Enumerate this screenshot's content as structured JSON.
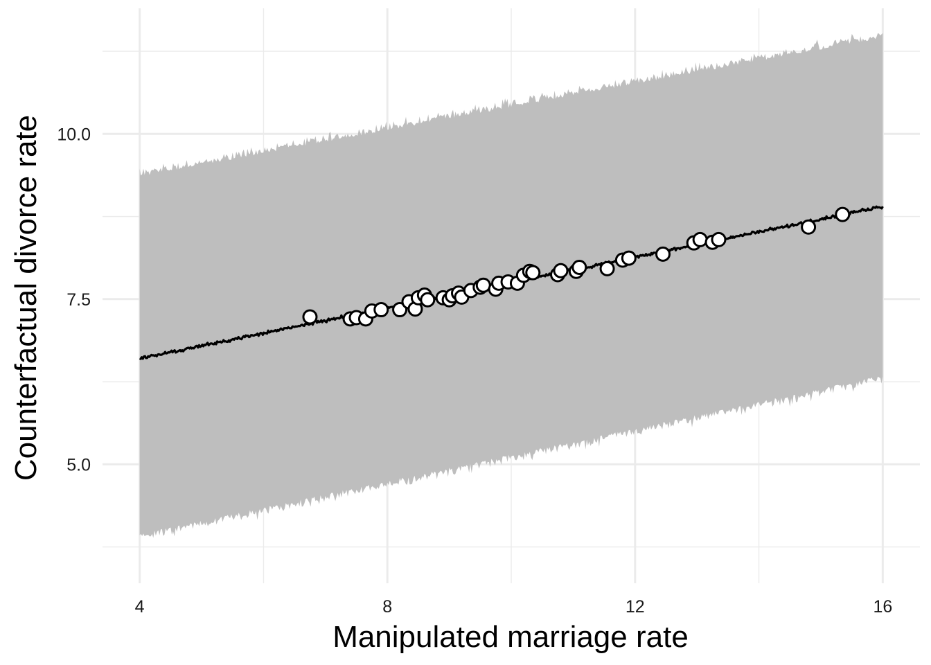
{
  "chart_data": {
    "type": "line",
    "xlabel": "Manipulated marriage rate",
    "ylabel": "Counterfactual divorce rate",
    "xlim": [
      3.4,
      16.6
    ],
    "ylim": [
      3.2,
      11.9
    ],
    "x_ticks": [
      4,
      8,
      12,
      16
    ],
    "x_tick_labels": [
      "4",
      "8",
      "12",
      "16"
    ],
    "x_minor_ticks": [
      6,
      10,
      14
    ],
    "y_ticks": [
      5.0,
      7.5,
      10.0
    ],
    "y_tick_labels": [
      "5.0",
      "7.5",
      "10.0"
    ],
    "y_minor_ticks": [
      3.75,
      6.25,
      8.75,
      11.25
    ],
    "grid": true,
    "series": [
      {
        "kind": "interval",
        "x": [
          4,
          16
        ],
        "lower": [
          3.9,
          6.3
        ],
        "upper": [
          9.4,
          11.5
        ],
        "color": "#bebebe"
      },
      {
        "kind": "line",
        "x": [
          4,
          16
        ],
        "y": [
          6.6,
          8.9
        ],
        "color": "#000000"
      },
      {
        "kind": "points",
        "points": [
          [
            6.75,
            7.23
          ],
          [
            7.4,
            7.2
          ],
          [
            7.5,
            7.22
          ],
          [
            7.65,
            7.2
          ],
          [
            7.75,
            7.32
          ],
          [
            7.9,
            7.34
          ],
          [
            8.2,
            7.34
          ],
          [
            8.35,
            7.46
          ],
          [
            8.45,
            7.35
          ],
          [
            8.5,
            7.52
          ],
          [
            8.6,
            7.56
          ],
          [
            8.65,
            7.49
          ],
          [
            8.9,
            7.52
          ],
          [
            9.0,
            7.49
          ],
          [
            9.05,
            7.55
          ],
          [
            9.15,
            7.59
          ],
          [
            9.2,
            7.53
          ],
          [
            9.35,
            7.63
          ],
          [
            9.5,
            7.68
          ],
          [
            9.55,
            7.71
          ],
          [
            9.75,
            7.65
          ],
          [
            9.8,
            7.74
          ],
          [
            9.95,
            7.76
          ],
          [
            10.1,
            7.74
          ],
          [
            10.2,
            7.86
          ],
          [
            10.3,
            7.92
          ],
          [
            10.35,
            7.9
          ],
          [
            10.75,
            7.87
          ],
          [
            10.8,
            7.93
          ],
          [
            11.05,
            7.92
          ],
          [
            11.1,
            7.98
          ],
          [
            11.55,
            7.96
          ],
          [
            11.8,
            8.09
          ],
          [
            11.9,
            8.12
          ],
          [
            12.45,
            8.18
          ],
          [
            12.95,
            8.35
          ],
          [
            13.05,
            8.4
          ],
          [
            13.25,
            8.36
          ],
          [
            13.35,
            8.4
          ],
          [
            14.8,
            8.59
          ],
          [
            15.35,
            8.78
          ]
        ],
        "fill": "#ffffff",
        "stroke": "#000000"
      }
    ]
  }
}
